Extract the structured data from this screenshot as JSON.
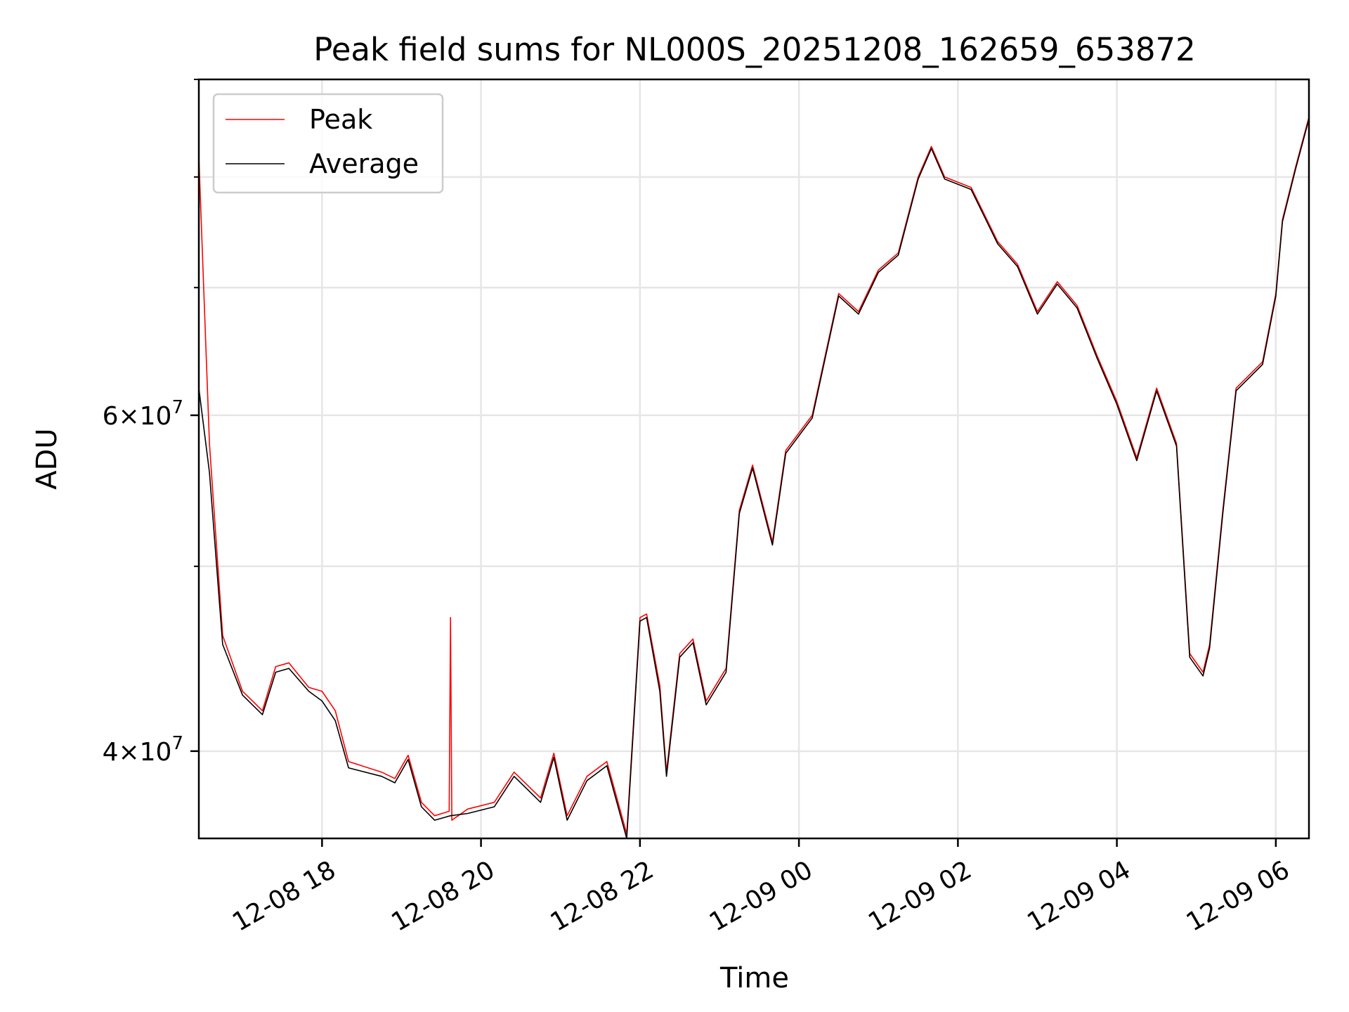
{
  "chart_data": {
    "type": "line",
    "title": "Peak field sums for NL000S_20251208_162659_653872",
    "xlabel": "Time",
    "ylabel": "ADU",
    "y_scale": "log",
    "xlim": [
      "2025-12-08 16:27",
      "2025-12-09 06:25"
    ],
    "ylim": [
      36000000,
      90000000
    ],
    "x_ticks": [
      "12-08 18",
      "12-08 20",
      "12-08 22",
      "12-09 00",
      "12-09 02",
      "12-09 04",
      "12-09 06"
    ],
    "y_ticks": [
      {
        "value": 40000000,
        "mantissa": "4",
        "exponent": "7"
      },
      {
        "value": 60000000,
        "mantissa": "6",
        "exponent": "7"
      }
    ],
    "grid": true,
    "legend_position": "top-left",
    "colors": {
      "Peak": "#ff0000",
      "Average": "#000000"
    },
    "series": [
      {
        "name": "Peak",
        "x": [
          "2025-12-08 16:27",
          "2025-12-08 16:35",
          "2025-12-08 16:45",
          "2025-12-08 17:00",
          "2025-12-08 17:15",
          "2025-12-08 17:25",
          "2025-12-08 17:35",
          "2025-12-08 17:50",
          "2025-12-08 18:00",
          "2025-12-08 18:10",
          "2025-12-08 18:20",
          "2025-12-08 18:45",
          "2025-12-08 18:55",
          "2025-12-08 19:05",
          "2025-12-08 19:15",
          "2025-12-08 19:25",
          "2025-12-08 19:36",
          "2025-12-08 19:37",
          "2025-12-08 19:38",
          "2025-12-08 19:50",
          "2025-12-08 20:10",
          "2025-12-08 20:25",
          "2025-12-08 20:45",
          "2025-12-08 20:55",
          "2025-12-08 21:05",
          "2025-12-08 21:20",
          "2025-12-08 21:35",
          "2025-12-08 21:50",
          "2025-12-08 22:00",
          "2025-12-08 22:05",
          "2025-12-08 22:15",
          "2025-12-08 22:20",
          "2025-12-08 22:30",
          "2025-12-08 22:40",
          "2025-12-08 22:50",
          "2025-12-08 23:05",
          "2025-12-08 23:15",
          "2025-12-08 23:25",
          "2025-12-08 23:40",
          "2025-12-08 23:50",
          "2025-12-09 00:10",
          "2025-12-09 00:30",
          "2025-12-09 00:45",
          "2025-12-09 01:00",
          "2025-12-09 01:15",
          "2025-12-09 01:30",
          "2025-12-09 01:40",
          "2025-12-09 01:50",
          "2025-12-09 02:10",
          "2025-12-09 02:30",
          "2025-12-09 02:45",
          "2025-12-09 03:00",
          "2025-12-09 03:15",
          "2025-12-09 03:30",
          "2025-12-09 03:45",
          "2025-12-09 04:00",
          "2025-12-09 04:15",
          "2025-12-09 04:30",
          "2025-12-09 04:45",
          "2025-12-09 04:55",
          "2025-12-09 05:05",
          "2025-12-09 05:10",
          "2025-12-09 05:20",
          "2025-12-09 05:30",
          "2025-12-09 05:50",
          "2025-12-09 06:00",
          "2025-12-09 06:05",
          "2025-12-09 06:15",
          "2025-12-09 06:25"
        ],
        "y": [
          82000000,
          58000000,
          46000000,
          43000000,
          42000000,
          44300000,
          44500000,
          43200000,
          43000000,
          42000000,
          39500000,
          39000000,
          38700000,
          39800000,
          37600000,
          37000000,
          37200000,
          47000000,
          36800000,
          37300000,
          37600000,
          39000000,
          37800000,
          39900000,
          37000000,
          38800000,
          39500000,
          36200000,
          47000000,
          47200000,
          43300000,
          39000000,
          45000000,
          45800000,
          42500000,
          44200000,
          53500000,
          56500000,
          51500000,
          57500000,
          60000000,
          69500000,
          68000000,
          71500000,
          73000000,
          80000000,
          83000000,
          80000000,
          79000000,
          74000000,
          72000000,
          68000000,
          70500000,
          68500000,
          64500000,
          61000000,
          57000000,
          62000000,
          58000000,
          45000000,
          44000000,
          45500000,
          53500000,
          62000000,
          64000000,
          69500000,
          76000000,
          81000000,
          86000000
        ]
      },
      {
        "name": "Average",
        "x": [
          "2025-12-08 16:27",
          "2025-12-08 16:35",
          "2025-12-08 16:45",
          "2025-12-08 17:00",
          "2025-12-08 17:15",
          "2025-12-08 17:25",
          "2025-12-08 17:35",
          "2025-12-08 17:50",
          "2025-12-08 18:00",
          "2025-12-08 18:10",
          "2025-12-08 18:20",
          "2025-12-08 18:45",
          "2025-12-08 18:55",
          "2025-12-08 19:05",
          "2025-12-08 19:15",
          "2025-12-08 19:25",
          "2025-12-08 19:37",
          "2025-12-08 19:50",
          "2025-12-08 20:10",
          "2025-12-08 20:25",
          "2025-12-08 20:45",
          "2025-12-08 20:55",
          "2025-12-08 21:05",
          "2025-12-08 21:20",
          "2025-12-08 21:35",
          "2025-12-08 21:50",
          "2025-12-08 22:00",
          "2025-12-08 22:05",
          "2025-12-08 22:15",
          "2025-12-08 22:20",
          "2025-12-08 22:30",
          "2025-12-08 22:40",
          "2025-12-08 22:50",
          "2025-12-08 23:05",
          "2025-12-08 23:15",
          "2025-12-08 23:25",
          "2025-12-08 23:40",
          "2025-12-08 23:50",
          "2025-12-09 00:10",
          "2025-12-09 00:30",
          "2025-12-09 00:45",
          "2025-12-09 01:00",
          "2025-12-09 01:15",
          "2025-12-09 01:30",
          "2025-12-09 01:40",
          "2025-12-09 01:50",
          "2025-12-09 02:10",
          "2025-12-09 02:30",
          "2025-12-09 02:45",
          "2025-12-09 03:00",
          "2025-12-09 03:15",
          "2025-12-09 03:30",
          "2025-12-09 03:45",
          "2025-12-09 04:00",
          "2025-12-09 04:15",
          "2025-12-09 04:30",
          "2025-12-09 04:45",
          "2025-12-09 04:55",
          "2025-12-09 05:05",
          "2025-12-09 05:10",
          "2025-12-09 05:20",
          "2025-12-09 05:30",
          "2025-12-09 05:50",
          "2025-12-09 06:00",
          "2025-12-09 06:05",
          "2025-12-09 06:15",
          "2025-12-09 06:25"
        ],
        "y": [
          62000000,
          56000000,
          45500000,
          42800000,
          41800000,
          44000000,
          44200000,
          43000000,
          42500000,
          41500000,
          39200000,
          38800000,
          38500000,
          39600000,
          37400000,
          36800000,
          37000000,
          37100000,
          37400000,
          38800000,
          37600000,
          39700000,
          36800000,
          38600000,
          39300000,
          36000000,
          46800000,
          47000000,
          43000000,
          38800000,
          44800000,
          45600000,
          42300000,
          44000000,
          53300000,
          56300000,
          51300000,
          57300000,
          59800000,
          69300000,
          67800000,
          71300000,
          72800000,
          79800000,
          82800000,
          79800000,
          78800000,
          73800000,
          71800000,
          67800000,
          70300000,
          68300000,
          64300000,
          60800000,
          56800000,
          61800000,
          57800000,
          44800000,
          43800000,
          45300000,
          53300000,
          61800000,
          63800000,
          69300000,
          75800000,
          80800000,
          85800000
        ]
      }
    ]
  }
}
